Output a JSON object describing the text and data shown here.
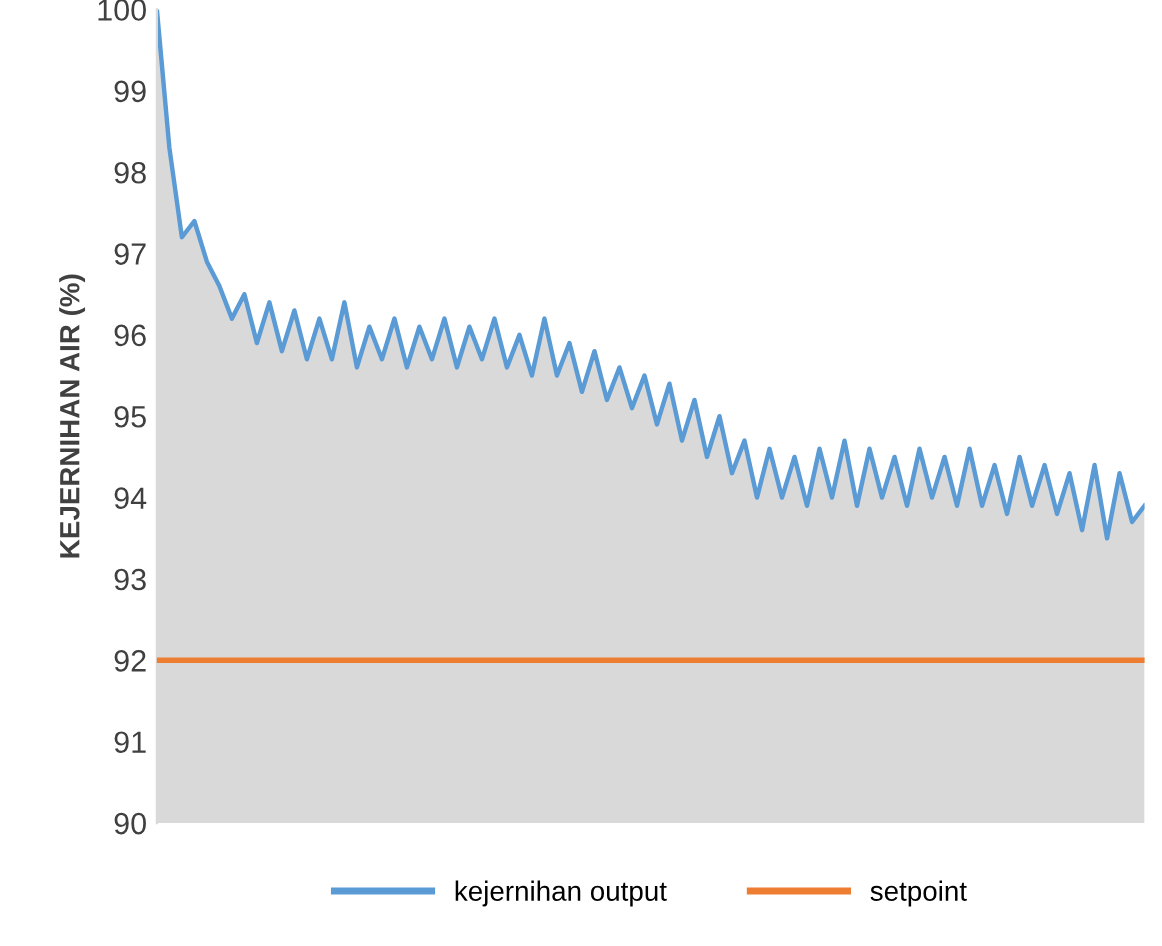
{
  "chart_data": {
    "type": "line",
    "ylabel": "KEJERNIHAN AIR (%)",
    "categories": [
      null,
      null,
      null,
      null,
      null,
      null,
      null,
      null,
      null,
      null,
      null,
      null,
      null,
      null,
      null,
      null,
      null,
      null,
      null,
      null,
      null,
      null,
      null,
      null,
      null,
      null,
      null,
      null,
      null,
      null,
      null,
      null,
      null,
      null,
      null,
      null,
      null,
      null,
      null,
      null,
      null,
      null,
      null,
      null,
      null,
      null,
      null,
      null,
      null,
      null,
      null,
      null,
      null,
      null,
      null,
      null,
      null,
      null,
      null,
      null,
      null,
      null,
      null,
      null,
      null,
      null,
      null,
      null,
      null,
      null,
      null,
      null,
      null,
      null,
      null,
      null,
      null,
      null,
      null,
      null
    ],
    "series": [
      {
        "type": "area",
        "name": "kejernihan output",
        "color": "#5b9bd5",
        "values": [
          100,
          98.3,
          97.2,
          97.4,
          96.9,
          96.6,
          96.2,
          96.5,
          95.9,
          96.4,
          95.8,
          96.3,
          95.7,
          96.2,
          95.7,
          96.4,
          95.6,
          96.1,
          95.7,
          96.2,
          95.6,
          96.1,
          95.7,
          96.2,
          95.6,
          96.1,
          95.7,
          96.2,
          95.6,
          96.0,
          95.5,
          96.2,
          95.5,
          95.9,
          95.3,
          95.8,
          95.2,
          95.6,
          95.1,
          95.5,
          94.9,
          95.4,
          94.7,
          95.2,
          94.5,
          95.0,
          94.3,
          94.7,
          94.0,
          94.6,
          94.0,
          94.5,
          93.9,
          94.6,
          94.0,
          94.7,
          93.9,
          94.6,
          94.0,
          94.5,
          93.9,
          94.6,
          94.0,
          94.5,
          93.9,
          94.6,
          93.9,
          94.4,
          93.8,
          94.5,
          93.9,
          94.4,
          93.8,
          94.3,
          93.6,
          94.4,
          93.5,
          94.3,
          93.7,
          93.9
        ]
      },
      {
        "name": "setpoint",
        "color": "#ed7d31",
        "values": [
          92,
          92,
          92,
          92,
          92,
          92,
          92,
          92,
          92,
          92,
          92,
          92,
          92,
          92,
          92,
          92,
          92,
          92,
          92,
          92,
          92,
          92,
          92,
          92,
          92,
          92,
          92,
          92,
          92,
          92,
          92,
          92,
          92,
          92,
          92,
          92,
          92,
          92,
          92,
          92,
          92,
          92,
          92,
          92,
          92,
          92,
          92,
          92,
          92,
          92,
          92,
          92,
          92,
          92,
          92,
          92,
          92,
          92,
          92,
          92,
          92,
          92,
          92,
          92,
          92,
          92,
          92,
          92,
          92,
          92,
          92,
          92,
          92,
          92,
          92,
          92,
          92,
          92,
          92,
          92
        ]
      }
    ],
    "ylim": [
      90,
      100
    ],
    "yticks": [
      90,
      91,
      92,
      93,
      94,
      95,
      96,
      97,
      98,
      99,
      100
    ],
    "tick_labels": "y",
    "legend": "bottom"
  }
}
